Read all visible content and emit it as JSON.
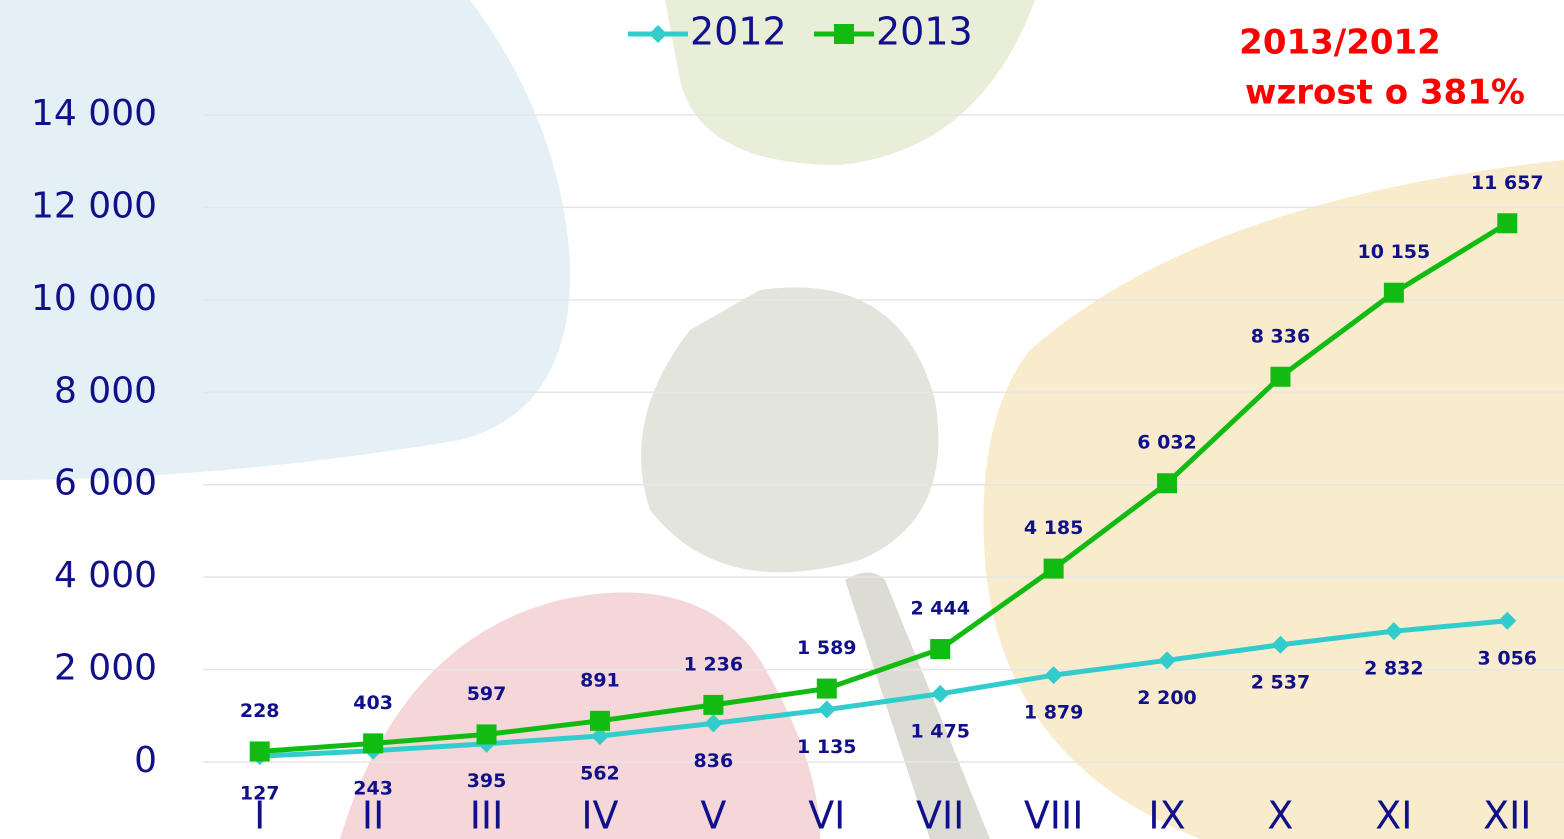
{
  "chart_data": {
    "type": "line",
    "categories": [
      "I",
      "II",
      "III",
      "IV",
      "V",
      "VI",
      "VII",
      "VIII",
      "IX",
      "X",
      "XI",
      "XII"
    ],
    "series": [
      {
        "name": "2012",
        "color": "#33cccc",
        "marker": "diamond",
        "values": [
          127,
          243,
          395,
          562,
          836,
          1135,
          1475,
          1879,
          2200,
          2537,
          2832,
          3056
        ],
        "value_labels": [
          "127",
          "243",
          "395",
          "562",
          "836",
          "1 135",
          "1 475",
          "1 879",
          "2 200",
          "2 537",
          "2 832",
          "3 056"
        ]
      },
      {
        "name": "2013",
        "color": "#11bb11",
        "marker": "square",
        "values": [
          228,
          403,
          597,
          891,
          1236,
          1589,
          2444,
          4185,
          6032,
          8336,
          10155,
          11657
        ],
        "value_labels": [
          "228",
          "403",
          "597",
          "891",
          "1 236",
          "1 589",
          "2 444",
          "4 185",
          "6 032",
          "8 336",
          "10 155",
          "11 657"
        ]
      }
    ],
    "ylim": [
      0,
      14000
    ],
    "yticks": [
      0,
      {
        "value": 2000,
        "label": "2 000"
      },
      {
        "value": 4000,
        "label": "4 000"
      },
      {
        "value": 6000,
        "label": "6 000"
      },
      {
        "value": 8000,
        "label": "8 000"
      },
      {
        "value": 10000,
        "label": "10 000"
      },
      {
        "value": 12000,
        "label": "12 000"
      },
      {
        "value": 14000,
        "label": "14 000"
      }
    ],
    "grid": true,
    "legend": "top",
    "annotations": [
      "2013/2012",
      "wzrost o 381%"
    ]
  }
}
